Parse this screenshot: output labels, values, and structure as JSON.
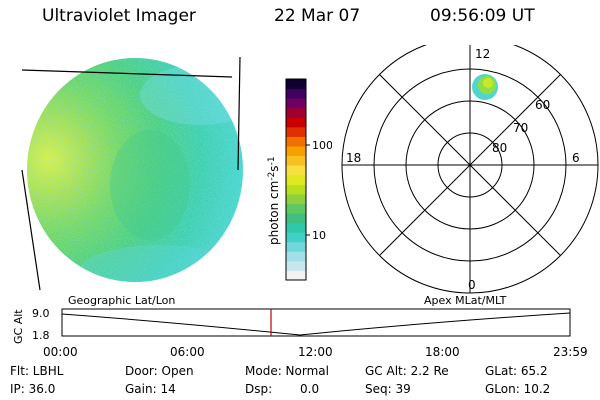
{
  "header": {
    "instrument": "Ultraviolet Imager",
    "date": "22 Mar 07",
    "time": "09:56:09 UT"
  },
  "colorbar": {
    "label": "photon cm",
    "label_exp1": "-2",
    "label_mid": "s",
    "label_exp2": "-1",
    "ticks": [
      "100",
      "10"
    ],
    "tick_values": [
      100,
      10
    ],
    "colors": [
      "#f2f2f2",
      "#c8e6ee",
      "#a0e0e8",
      "#70d8dc",
      "#40d0c8",
      "#30c8a8",
      "#40c080",
      "#60c860",
      "#90d040",
      "#b8e020",
      "#e0e820",
      "#f8e040",
      "#f8c020",
      "#f8a000",
      "#f07000",
      "#e03000",
      "#c80000",
      "#a00030",
      "#700060",
      "#400060",
      "#100030"
    ]
  },
  "polar": {
    "mlt_labels": [
      "12",
      "18",
      "6",
      "0"
    ],
    "lat_labels": [
      "60",
      "70",
      "80"
    ],
    "lat_values": [
      60,
      70,
      80
    ]
  },
  "altitude_plot": {
    "y_label": "GC Alt",
    "y_ticks": [
      "9.0",
      "1.8"
    ],
    "left_title": "Geographic Lat/Lon",
    "right_title": "Apex MLat/MLT",
    "x_ticks": [
      "00:00",
      "06:00",
      "12:00",
      "18:00",
      "23:59"
    ],
    "marker_color": "#c00000"
  },
  "info": {
    "flt": "Flt: LBHL",
    "ip": "IP: 36.0",
    "door": "Door: Open",
    "gain": "Gain: 14",
    "mode": "Mode: Normal",
    "dsp_label": "Dsp:",
    "dsp_value": "0.0",
    "gc_alt": "GC Alt: 2.2 Re",
    "seq": "Seq: 39",
    "glat": "GLat: 65.2",
    "glon": "GLon: 10.2"
  }
}
